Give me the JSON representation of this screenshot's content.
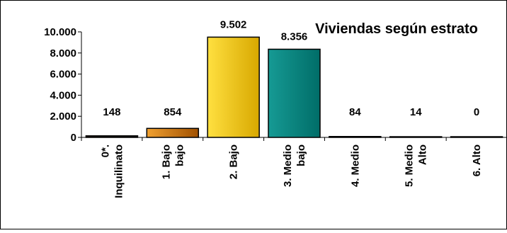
{
  "chart_data": {
    "type": "bar",
    "title": "Viviendas según estrato",
    "categories": [
      [
        "0*.",
        "Inquilinato"
      ],
      [
        "1. Bajo",
        "bajo"
      ],
      [
        "2. Bajo"
      ],
      [
        "3. Medio",
        "bajo"
      ],
      [
        "4. Medio"
      ],
      [
        "5. Medio",
        "Alto"
      ],
      [
        "6. Alto"
      ]
    ],
    "values": [
      148,
      854,
      9502,
      8356,
      84,
      14,
      0
    ],
    "data_labels": [
      "148",
      "854",
      "9.502",
      "8.356",
      "84",
      "14",
      "0"
    ],
    "yticks": [
      0,
      2000,
      4000,
      6000,
      8000,
      10000
    ],
    "ytick_labels": [
      "0",
      "2.000",
      "4.000",
      "6.000",
      "8.000",
      "10.000"
    ],
    "ylim": [
      0,
      10000
    ],
    "grid": false,
    "legend": "none",
    "bar_colors": [
      [
        "#2a2000",
        "#000000"
      ],
      [
        "#f0a030",
        "#a05000"
      ],
      [
        "#ffe040",
        "#d8a800"
      ],
      [
        "#169a94",
        "#006d68"
      ],
      [
        "#008080",
        "#005050"
      ],
      [
        "#008080",
        "#005050"
      ],
      [
        "#008080",
        "#005050"
      ]
    ]
  }
}
